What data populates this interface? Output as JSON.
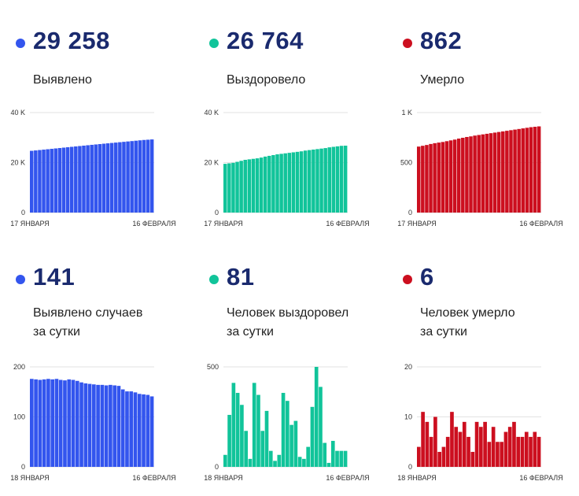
{
  "colors": {
    "blue": "#3355ee",
    "green": "#11c49a",
    "red": "#cc0f1f",
    "dark": "#1a2a6e"
  },
  "panels": [
    {
      "value": "29 258",
      "label1": "Выявлено",
      "label2": "",
      "color": "#3355ee"
    },
    {
      "value": "26 764",
      "label1": "Выздоровело",
      "label2": "",
      "color": "#11c49a"
    },
    {
      "value": "862",
      "label1": "Умерло",
      "label2": "",
      "color": "#cc0f1f"
    },
    {
      "value": "141",
      "label1": "Выявлено случаев",
      "label2": "за сутки",
      "color": "#3355ee"
    },
    {
      "value": "81",
      "label1": "Человек выздоровел",
      "label2": "за сутки",
      "color": "#11c49a"
    },
    {
      "value": "6",
      "label1": "Человек умерло",
      "label2": "за сутки",
      "color": "#cc0f1f"
    }
  ],
  "chart_data": [
    {
      "type": "bar",
      "color": "#3355ee",
      "ylim": [
        0,
        40000
      ],
      "yticks": [
        {
          "v": 0,
          "t": "0"
        },
        {
          "v": 20000,
          "t": "20 K"
        },
        {
          "v": 40000,
          "t": "40 K"
        }
      ],
      "xstart": "17 ЯНВАРЯ",
      "xend": "16 ФЕВРАЛЯ",
      "values": [
        24700,
        24860,
        25020,
        25180,
        25340,
        25500,
        25660,
        25820,
        25980,
        26140,
        26300,
        26460,
        26620,
        26780,
        26940,
        27100,
        27250,
        27400,
        27550,
        27700,
        27850,
        28000,
        28150,
        28300,
        28450,
        28600,
        28750,
        28900,
        29050,
        29150,
        29258
      ]
    },
    {
      "type": "bar",
      "color": "#11c49a",
      "ylim": [
        0,
        40000
      ],
      "yticks": [
        {
          "v": 0,
          "t": "0"
        },
        {
          "v": 20000,
          "t": "20 K"
        },
        {
          "v": 40000,
          "t": "40 K"
        }
      ],
      "xstart": "17 ЯНВАРЯ",
      "xend": "16 ФЕВРАЛЯ",
      "values": [
        19500,
        19700,
        19900,
        20300,
        20700,
        21100,
        21300,
        21500,
        21700,
        22000,
        22400,
        22700,
        23000,
        23300,
        23500,
        23700,
        23900,
        24100,
        24300,
        24500,
        24800,
        25000,
        25200,
        25400,
        25600,
        25800,
        26100,
        26300,
        26500,
        26700,
        26764
      ]
    },
    {
      "type": "bar",
      "color": "#cc0f1f",
      "ylim": [
        0,
        1000
      ],
      "yticks": [
        {
          "v": 0,
          "t": "0"
        },
        {
          "v": 500,
          "t": "500"
        },
        {
          "v": 1000,
          "t": "1 K"
        }
      ],
      "xstart": "17 ЯНВАРЯ",
      "xend": "16 ФЕВРАЛЯ",
      "values": [
        660,
        668,
        676,
        686,
        694,
        700,
        706,
        714,
        722,
        730,
        740,
        748,
        756,
        762,
        770,
        776,
        782,
        788,
        794,
        800,
        806,
        812,
        818,
        824,
        830,
        836,
        842,
        848,
        854,
        858,
        862
      ]
    },
    {
      "type": "bar",
      "color": "#3355ee",
      "ylim": [
        0,
        200
      ],
      "yticks": [
        {
          "v": 0,
          "t": "0"
        },
        {
          "v": 100,
          "t": "100"
        },
        {
          "v": 200,
          "t": "200"
        }
      ],
      "xstart": "18 ЯНВАРЯ",
      "xend": "16 ФЕВРАЛЯ",
      "values": [
        176,
        175,
        174,
        175,
        176,
        175,
        176,
        174,
        173,
        175,
        174,
        172,
        169,
        167,
        166,
        165,
        164,
        164,
        163,
        164,
        163,
        162,
        155,
        151,
        151,
        149,
        146,
        145,
        144,
        141
      ]
    },
    {
      "type": "bar",
      "color": "#11c49a",
      "ylim": [
        0,
        500
      ],
      "yticks": [
        {
          "v": 0,
          "t": "0"
        },
        {
          "v": 500,
          "t": "500"
        }
      ],
      "xstart": "18 ЯНВАРЯ",
      "xend": "16 ФЕВРАЛЯ",
      "values": [
        60,
        260,
        420,
        370,
        310,
        180,
        40,
        420,
        360,
        180,
        280,
        80,
        30,
        60,
        370,
        330,
        210,
        230,
        50,
        40,
        100,
        300,
        500,
        400,
        120,
        20,
        130,
        80,
        80,
        80
      ]
    },
    {
      "type": "bar",
      "color": "#cc0f1f",
      "ylim": [
        0,
        20
      ],
      "yticks": [
        {
          "v": 0,
          "t": "0"
        },
        {
          "v": 10,
          "t": "10"
        },
        {
          "v": 20,
          "t": "20"
        }
      ],
      "xstart": "18 ЯНВАРЯ",
      "xend": "16 ФЕВРАЛЯ",
      "values": [
        4,
        11,
        9,
        6,
        10,
        3,
        4,
        6,
        11,
        8,
        7,
        9,
        6,
        3,
        9,
        8,
        9,
        5,
        8,
        5,
        5,
        7,
        8,
        9,
        6,
        6,
        7,
        6,
        7,
        6
      ]
    }
  ]
}
